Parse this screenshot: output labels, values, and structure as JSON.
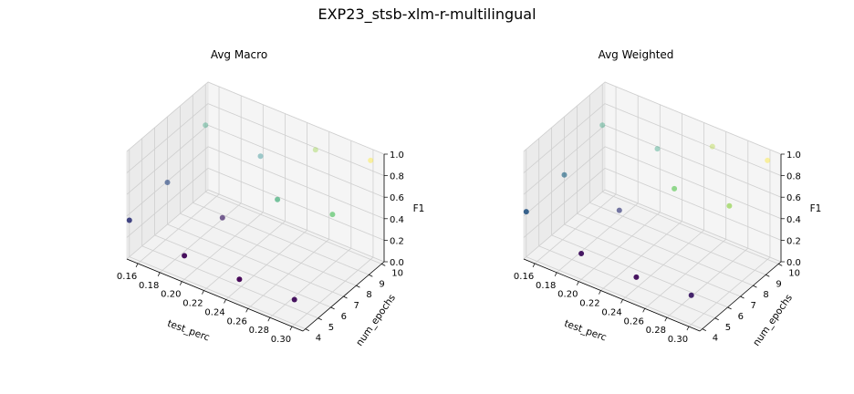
{
  "figure": {
    "title": "EXP23_stsb-xlm-r-multilingual"
  },
  "chart_data": [
    {
      "type": "scatter",
      "title": "Avg Macro",
      "xlabel": "test_perc",
      "ylabel": "num_epochs",
      "zlabel": "F1",
      "xlim": [
        0.15,
        0.31
      ],
      "ylim": [
        3.8,
        10.2
      ],
      "zlim": [
        0,
        1
      ],
      "x_ticks": [
        "0.16",
        "0.18",
        "0.20",
        "0.22",
        "0.24",
        "0.26",
        "0.28",
        "0.30"
      ],
      "y_ticks": [
        "4",
        "5",
        "6",
        "7",
        "8",
        "9",
        "10"
      ],
      "z_ticks": [
        "0.0",
        "0.2",
        "0.4",
        "0.6",
        "0.8",
        "1.0"
      ],
      "grid": true,
      "colormap": "viridis",
      "points": [
        {
          "x": 0.15,
          "y": 4,
          "z": 0.34
        },
        {
          "x": 0.15,
          "y": 7,
          "z": 0.39
        },
        {
          "x": 0.15,
          "y": 10,
          "z": 0.62
        },
        {
          "x": 0.2,
          "y": 4,
          "z": 0.22
        },
        {
          "x": 0.2,
          "y": 7,
          "z": 0.27
        },
        {
          "x": 0.2,
          "y": 10,
          "z": 0.54
        },
        {
          "x": 0.25,
          "y": 4,
          "z": 0.21
        },
        {
          "x": 0.25,
          "y": 7,
          "z": 0.65
        },
        {
          "x": 0.25,
          "y": 10,
          "z": 0.81
        },
        {
          "x": 0.3,
          "y": 4,
          "z": 0.23
        },
        {
          "x": 0.3,
          "y": 7,
          "z": 0.72
        },
        {
          "x": 0.3,
          "y": 10,
          "z": 0.92
        }
      ]
    },
    {
      "type": "scatter",
      "title": "Avg Weighted",
      "xlabel": "test_perc",
      "ylabel": "num_epochs",
      "zlabel": "F1",
      "xlim": [
        0.15,
        0.31
      ],
      "ylim": [
        3.8,
        10.2
      ],
      "zlim": [
        0,
        1
      ],
      "x_ticks": [
        "0.16",
        "0.18",
        "0.20",
        "0.22",
        "0.24",
        "0.26",
        "0.28",
        "0.30"
      ],
      "y_ticks": [
        "4",
        "5",
        "6",
        "7",
        "8",
        "9",
        "10"
      ],
      "z_ticks": [
        "0.0",
        "0.2",
        "0.4",
        "0.6",
        "0.8",
        "1.0"
      ],
      "grid": true,
      "colormap": "viridis",
      "points": [
        {
          "x": 0.15,
          "y": 4,
          "z": 0.42
        },
        {
          "x": 0.15,
          "y": 7,
          "z": 0.46
        },
        {
          "x": 0.15,
          "y": 10,
          "z": 0.62
        },
        {
          "x": 0.2,
          "y": 4,
          "z": 0.24
        },
        {
          "x": 0.2,
          "y": 7,
          "z": 0.34
        },
        {
          "x": 0.2,
          "y": 10,
          "z": 0.61
        },
        {
          "x": 0.25,
          "y": 4,
          "z": 0.23
        },
        {
          "x": 0.25,
          "y": 7,
          "z": 0.75
        },
        {
          "x": 0.25,
          "y": 10,
          "z": 0.84
        },
        {
          "x": 0.3,
          "y": 4,
          "z": 0.27
        },
        {
          "x": 0.3,
          "y": 7,
          "z": 0.8
        },
        {
          "x": 0.3,
          "y": 10,
          "z": 0.92
        }
      ]
    }
  ]
}
